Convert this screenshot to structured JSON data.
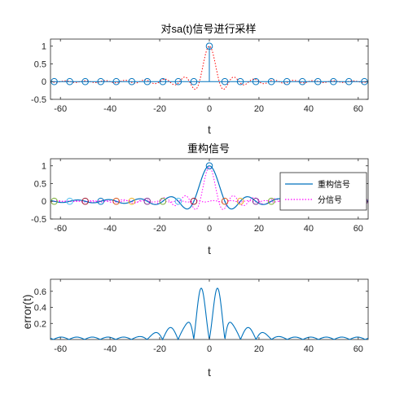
{
  "chart_data": [
    {
      "type": "line",
      "title": "对sa(t)信号进行采样",
      "xlabel": "t",
      "ylabel": "",
      "xlim": [
        -64,
        64
      ],
      "ylim": [
        -0.5,
        1.2
      ],
      "xticks": [
        -60,
        -40,
        -20,
        0,
        20,
        40,
        60
      ],
      "yticks": [
        -0.5,
        0,
        0.5,
        1
      ],
      "yticklabels": [
        "-0.5",
        "0",
        "0.5",
        "1"
      ],
      "sample_period": 6.25,
      "sample_t": [
        -62.5,
        -56.25,
        -50,
        -43.75,
        -37.5,
        -31.25,
        -25,
        -18.75,
        -12.5,
        -6.25,
        0,
        6.25,
        12.5,
        18.75,
        25,
        31.25,
        37.5,
        43.75,
        50,
        56.25,
        62.5
      ],
      "sample_values": [
        0,
        0,
        0,
        0,
        0,
        0,
        0,
        0,
        0,
        0,
        1,
        0,
        0,
        0,
        0,
        0,
        0,
        0,
        0,
        0,
        0
      ],
      "series": [
        {
          "style": "stem",
          "color": "#0072BD"
        },
        {
          "style": "dotted",
          "color": "#FF0000",
          "shape": "sa(t)"
        }
      ]
    },
    {
      "type": "line",
      "title": "重构信号",
      "xlabel": "t",
      "ylabel": "",
      "xlim": [
        -64,
        64
      ],
      "ylim": [
        -0.5,
        1.2
      ],
      "xticks": [
        -60,
        -40,
        -20,
        0,
        20,
        40,
        60
      ],
      "yticks": [
        -0.5,
        0,
        0.5,
        1
      ],
      "yticklabels": [
        "-0.5",
        "0",
        "0.5",
        "1"
      ],
      "legend": {
        "position": "right",
        "entries": [
          "重构信号",
          "分信号"
        ]
      },
      "series": [
        {
          "name": "重构信号",
          "color": "#0072BD",
          "style": "solid",
          "shape": "sinc-reconstruction"
        },
        {
          "name": "分信号",
          "color": "#FF00FF",
          "style": "dotted"
        }
      ],
      "marker_colors": [
        "#0072BD",
        "#D95319",
        "#EDB120",
        "#7E2F8E",
        "#77AC30",
        "#4DBEEE",
        "#A2142F"
      ]
    },
    {
      "type": "line",
      "title": "",
      "xlabel": "t",
      "ylabel": "error(t)",
      "xlim": [
        -64,
        64
      ],
      "ylim": [
        0,
        0.75
      ],
      "xticks": [
        -60,
        -40,
        -20,
        0,
        20,
        40,
        60
      ],
      "yticks": [
        0.2,
        0.4,
        0.6
      ],
      "yticklabels": [
        "0.2",
        "0.4",
        "0.6"
      ],
      "peak_values": [
        0.66,
        0.66
      ],
      "series": [
        {
          "color": "#0072BD",
          "style": "solid",
          "shape": "abs-error"
        }
      ]
    }
  ]
}
